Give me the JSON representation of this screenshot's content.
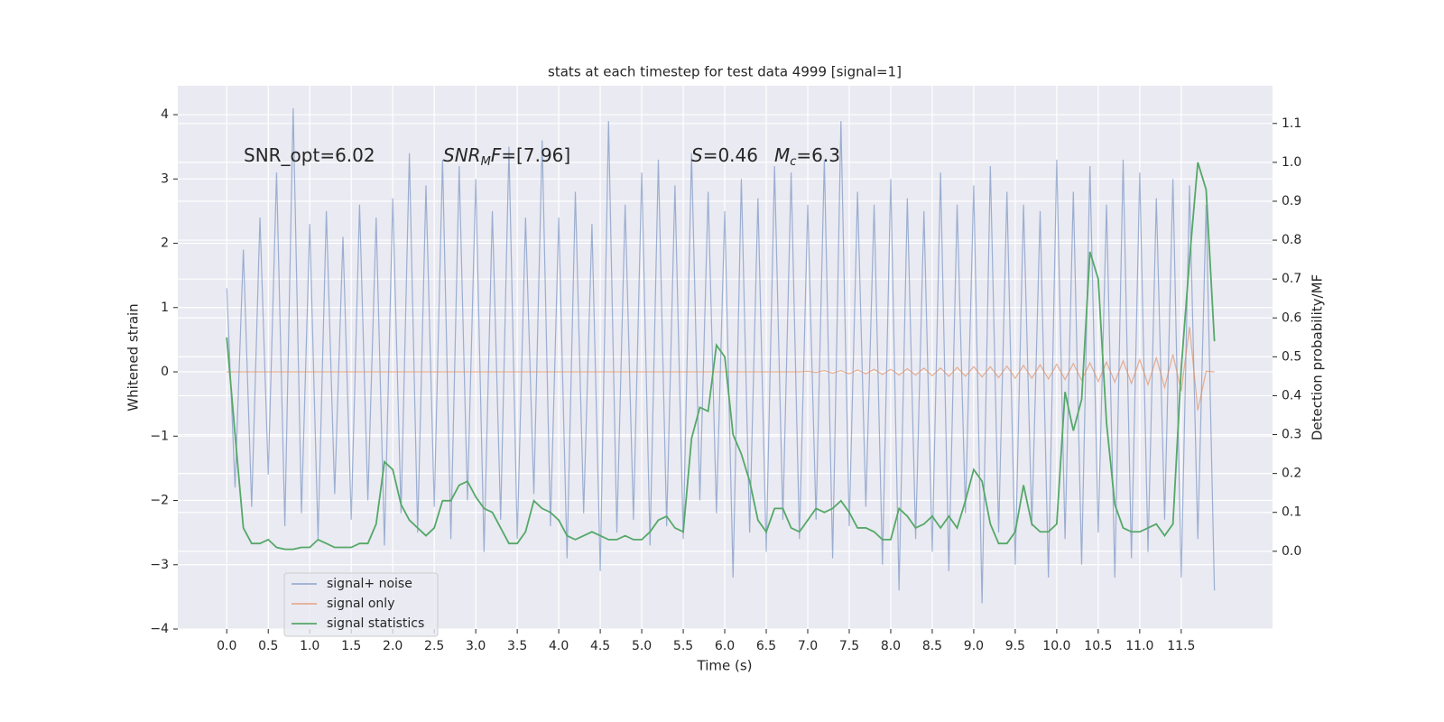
{
  "chart_data": {
    "type": "line",
    "title": "stats at each timestep for test data 4999 [signal=1]",
    "xlabel": "Time (s)",
    "ylabel": "Whitened strain",
    "y2label": "Detection probability/MF",
    "annotations": [
      [
        "SNR_opt=6.02"
      ],
      [
        "SNR",
        "M",
        "F",
        "=[7.96]"
      ],
      [
        "S",
        "=0.46"
      ],
      [
        "M",
        "c",
        "=6.3"
      ]
    ],
    "grid": true,
    "legend": "lower left",
    "xlim": [
      -0.59,
      12.6
    ],
    "ylim": [
      -4,
      4.45
    ],
    "y2lim": [
      -0.2,
      1.197
    ],
    "xticks": [
      {
        "value": 0,
        "label": "0.0"
      },
      0.5,
      {
        "value": 1,
        "label": "1.0"
      },
      1.5,
      {
        "value": 2,
        "label": "2.0"
      },
      2.5,
      {
        "value": 3,
        "label": "3.0"
      },
      3.5,
      {
        "value": 4,
        "label": "4.0"
      },
      4.5,
      {
        "value": 5,
        "label": "5.0"
      },
      5.5,
      {
        "value": 6,
        "label": "6.0"
      },
      6.5,
      {
        "value": 7,
        "label": "7.0"
      },
      7.5,
      {
        "value": 8,
        "label": "8.0"
      },
      8.5,
      {
        "value": 9,
        "label": "9.0"
      },
      9.5,
      {
        "value": 10,
        "label": "10.0"
      },
      10.5,
      {
        "value": 11,
        "label": "11.0"
      },
      11.5
    ],
    "yticks": [
      {
        "value": -4,
        "label": "−4"
      },
      {
        "value": -3,
        "label": "−3"
      },
      {
        "value": -2,
        "label": "−2"
      },
      {
        "value": -1,
        "label": "−1"
      },
      0,
      1,
      2,
      3,
      4
    ],
    "y2ticks": [
      {
        "value": 0,
        "label": "0.0"
      },
      0.1,
      0.2,
      0.3,
      0.4,
      0.5,
      0.6,
      0.7,
      0.8,
      0.9,
      {
        "value": 1,
        "label": "1.0"
      },
      1.1
    ],
    "x": [
      0,
      0.1,
      0.2,
      0.3,
      0.4,
      0.5,
      0.6,
      0.7,
      0.8,
      0.9,
      1,
      1.1,
      1.2,
      1.3,
      1.4,
      1.5,
      1.6,
      1.7,
      1.8,
      1.9,
      2,
      2.1,
      2.2,
      2.3,
      2.4,
      2.5,
      2.6,
      2.7,
      2.8,
      2.9,
      3,
      3.1,
      3.2,
      3.3,
      3.4,
      3.5,
      3.6,
      3.7,
      3.8,
      3.9,
      4,
      4.1,
      4.2,
      4.3,
      4.4,
      4.5,
      4.6,
      4.7,
      4.8,
      4.9,
      5,
      5.1,
      5.2,
      5.3,
      5.4,
      5.5,
      5.6,
      5.7,
      5.8,
      5.9,
      6,
      6.1,
      6.2,
      6.3,
      6.4,
      6.5,
      6.6,
      6.7,
      6.8,
      6.9,
      7,
      7.1,
      7.2,
      7.3,
      7.4,
      7.5,
      7.6,
      7.7,
      7.8,
      7.9,
      8,
      8.1,
      8.2,
      8.3,
      8.4,
      8.5,
      8.6,
      8.7,
      8.8,
      8.9,
      9,
      9.1,
      9.2,
      9.3,
      9.4,
      9.5,
      9.6,
      9.7,
      9.8,
      9.9,
      10,
      10.1,
      10.2,
      10.3,
      10.4,
      10.5,
      10.6,
      10.7,
      10.8,
      10.9,
      11,
      11.1,
      11.2,
      11.3,
      11.4,
      11.5,
      11.6,
      11.7,
      11.8,
      11.9
    ],
    "series": [
      {
        "name": "signal+ noise",
        "color": "#4c72b0",
        "values": [
          1.3,
          -1.8,
          1.9,
          -2.1,
          2.4,
          -1.6,
          3.1,
          -2.4,
          4.1,
          -2.2,
          2.3,
          -2.6,
          2.5,
          -1.9,
          2.1,
          -2.3,
          2.6,
          -2.0,
          2.4,
          -2.7,
          2.7,
          -2.2,
          3.4,
          -2.5,
          2.9,
          -2.1,
          3.3,
          -2.6,
          3.2,
          -2.0,
          3.0,
          -2.8,
          2.5,
          -2.3,
          3.5,
          -2.6,
          2.4,
          -1.9,
          3.6,
          -2.4,
          2.4,
          -2.9,
          2.8,
          -2.2,
          2.3,
          -3.1,
          3.9,
          -2.5,
          2.6,
          -2.3,
          3.1,
          -2.7,
          3.3,
          -2.4,
          2.9,
          -2.6,
          3.4,
          -2.0,
          2.8,
          -2.2,
          2.5,
          -3.2,
          3.0,
          -2.5,
          2.7,
          -2.8,
          3.2,
          -2.3,
          3.1,
          -2.6,
          2.6,
          -2.3,
          3.3,
          -2.9,
          3.9,
          -2.4,
          2.8,
          -2.1,
          2.6,
          -3.0,
          3.0,
          -3.4,
          2.7,
          -2.6,
          2.5,
          -2.8,
          3.1,
          -3.1,
          2.6,
          -2.2,
          2.9,
          -3.6,
          3.2,
          -2.5,
          2.8,
          -3.0,
          2.6,
          -2.4,
          2.5,
          -3.2,
          3.3,
          -2.6,
          2.8,
          -3.0,
          3.2,
          -2.5,
          2.6,
          -3.2,
          3.3,
          -2.9,
          3.1,
          -2.8,
          2.7,
          -2.3,
          3.0,
          -3.2,
          2.9,
          -2.6,
          2.6,
          -3.4
        ]
      },
      {
        "name": "signal only",
        "color": "#dd8452",
        "values": [
          0,
          0,
          0,
          0,
          0,
          0,
          0,
          0,
          0,
          0,
          0,
          0,
          0,
          0,
          0,
          0,
          0,
          0,
          0,
          0,
          0,
          0,
          0,
          0,
          0,
          0,
          0,
          0,
          0,
          0,
          0,
          0,
          0,
          0,
          0,
          0,
          0,
          0,
          0,
          0,
          0,
          0,
          0,
          0,
          0,
          0,
          0,
          0,
          0,
          0,
          0,
          0,
          0,
          0,
          0,
          0,
          0,
          0,
          0,
          0,
          0,
          0,
          0,
          0,
          0,
          0,
          0,
          0,
          0,
          0,
          0.01,
          -0.01,
          0.02,
          -0.02,
          0.02,
          -0.03,
          0.03,
          -0.03,
          0.04,
          -0.04,
          0.04,
          -0.05,
          0.05,
          -0.05,
          0.06,
          -0.06,
          0.06,
          -0.07,
          0.07,
          -0.07,
          0.08,
          -0.08,
          0.08,
          -0.09,
          0.09,
          -0.1,
          0.1,
          -0.1,
          0.11,
          -0.11,
          0.12,
          -0.12,
          0.13,
          -0.13,
          0.14,
          -0.15,
          0.15,
          -0.16,
          0.17,
          -0.18,
          0.19,
          -0.2,
          0.22,
          -0.24,
          0.27,
          -0.3,
          0.7,
          -0.6,
          0.01,
          0
        ]
      },
      {
        "name": "signal statistics",
        "color": "#55a868",
        "axis": "y2",
        "values": [
          0.55,
          0.3,
          0.06,
          0.02,
          0.02,
          0.03,
          0.01,
          0.005,
          0.005,
          0.01,
          0.01,
          0.03,
          0.02,
          0.01,
          0.01,
          0.01,
          0.02,
          0.02,
          0.07,
          0.23,
          0.21,
          0.12,
          0.08,
          0.06,
          0.04,
          0.06,
          0.13,
          0.13,
          0.17,
          0.18,
          0.14,
          0.11,
          0.1,
          0.06,
          0.02,
          0.02,
          0.05,
          0.13,
          0.11,
          0.1,
          0.08,
          0.04,
          0.03,
          0.04,
          0.05,
          0.04,
          0.03,
          0.03,
          0.04,
          0.03,
          0.03,
          0.05,
          0.08,
          0.09,
          0.06,
          0.05,
          0.29,
          0.37,
          0.36,
          0.53,
          0.5,
          0.3,
          0.25,
          0.18,
          0.08,
          0.05,
          0.11,
          0.11,
          0.06,
          0.05,
          0.08,
          0.11,
          0.1,
          0.11,
          0.13,
          0.1,
          0.06,
          0.06,
          0.05,
          0.03,
          0.03,
          0.11,
          0.09,
          0.06,
          0.07,
          0.09,
          0.06,
          0.09,
          0.06,
          0.13,
          0.21,
          0.18,
          0.07,
          0.02,
          0.02,
          0.05,
          0.17,
          0.07,
          0.05,
          0.05,
          0.07,
          0.41,
          0.31,
          0.39,
          0.77,
          0.7,
          0.33,
          0.12,
          0.06,
          0.05,
          0.05,
          0.06,
          0.07,
          0.04,
          0.07,
          0.47,
          0.75,
          1.0,
          0.93,
          0.54
        ]
      }
    ]
  }
}
